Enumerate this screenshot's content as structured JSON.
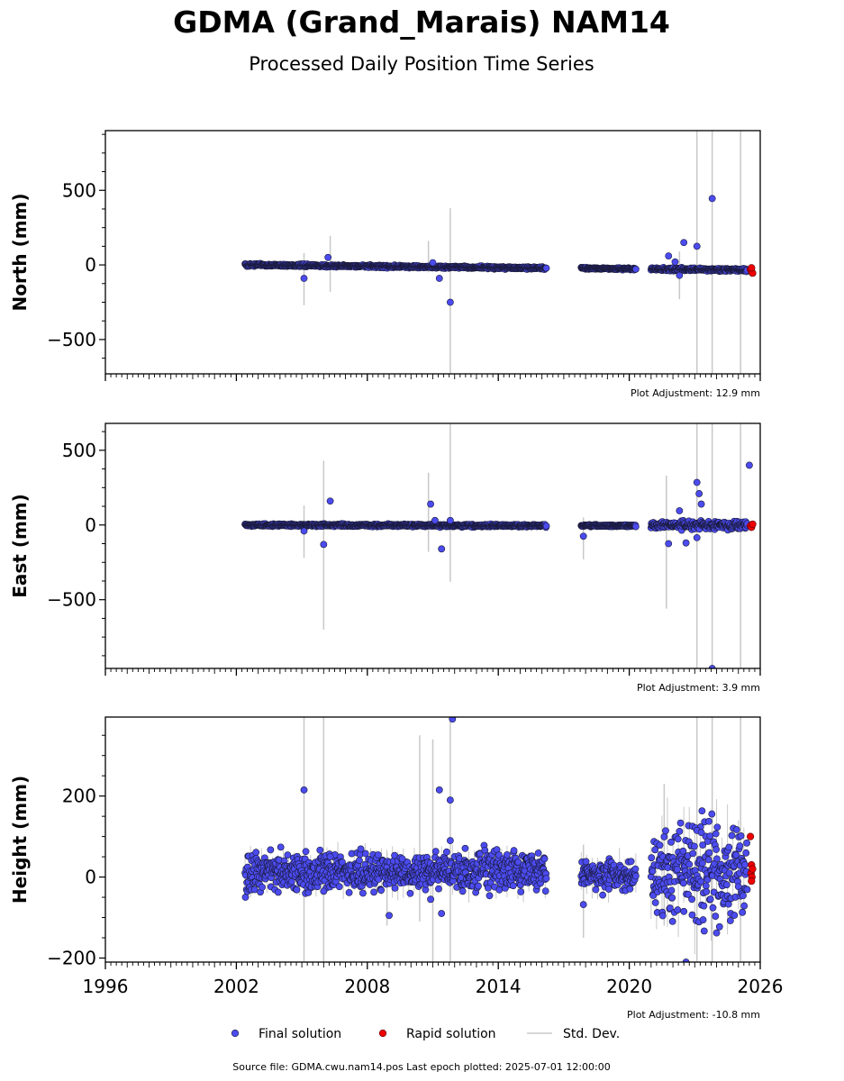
{
  "title": "GDMA (Grand_Marais) NAM14",
  "subtitle": "Processed Daily Position Time Series",
  "footer": "Source file: GDMA.cwu.nam14.pos  Last epoch plotted: 2025-07-01 12:00:00",
  "colors": {
    "final": "#4b4bef",
    "rapid": "#ee0000",
    "stddev": "#c8c8c8",
    "edge": "#1a1a3a"
  },
  "legend": [
    {
      "label": "Final solution",
      "kind": "final"
    },
    {
      "label": "Rapid solution",
      "kind": "rapid"
    },
    {
      "label": "Std. Dev.",
      "kind": "stddev"
    }
  ],
  "chart_data": [
    {
      "type": "scatter",
      "ylabel": "North (mm)",
      "xlim": [
        1996,
        2026
      ],
      "ylim": [
        -730,
        900
      ],
      "yticks": [
        -500,
        0,
        500
      ],
      "ytick_labels": [
        "−500",
        "0",
        "500"
      ],
      "xticks": [
        1996,
        2002,
        2008,
        2014,
        2020,
        2026
      ],
      "xtick_labels": [
        "",
        "",
        "",
        "",
        "",
        ""
      ],
      "adjustment": "Plot Adjustment: 12.9 mm",
      "series": [
        {
          "name": "Final solution",
          "kind": "final",
          "bands": [
            {
              "x": [
                2002.4,
                2016.2
              ],
              "y0": 0,
              "y1": -22,
              "spread": 4
            },
            {
              "x": [
                2017.8,
                2020.3
              ],
              "y0": -22,
              "y1": -27,
              "spread": 3
            },
            {
              "x": [
                2021.0,
                2025.4
              ],
              "y0": -28,
              "y1": -34,
              "spread": 5
            }
          ],
          "outliers": [
            [
              2005.1,
              -90
            ],
            [
              2006.2,
              50
            ],
            [
              2011.0,
              15
            ],
            [
              2011.3,
              -90
            ],
            [
              2011.8,
              -250
            ],
            [
              2021.8,
              60
            ],
            [
              2022.1,
              20
            ],
            [
              2022.5,
              150
            ],
            [
              2023.1,
              125
            ],
            [
              2023.8,
              445
            ],
            [
              2022.3,
              -70
            ]
          ]
        },
        {
          "name": "Rapid solution",
          "kind": "rapid",
          "points": [
            [
              2025.55,
              -30
            ],
            [
              2025.6,
              -45
            ],
            [
              2025.65,
              -55
            ],
            [
              2025.6,
              -20
            ]
          ]
        },
        {
          "name": "Std. Dev.",
          "kind": "stddev",
          "bars": [
            [
              2005.1,
              -270,
              80
            ],
            [
              2006.3,
              -180,
              195
            ],
            [
              2010.8,
              -50,
              160
            ],
            [
              2011.8,
              -730,
              380
            ],
            [
              2022.3,
              -230,
              90
            ],
            [
              2023.1,
              -730,
              900
            ],
            [
              2023.8,
              -730,
              900
            ],
            [
              2025.1,
              -730,
              900
            ]
          ]
        }
      ]
    },
    {
      "type": "scatter",
      "ylabel": "East (mm)",
      "xlim": [
        1996,
        2026
      ],
      "ylim": [
        -960,
        680
      ],
      "yticks": [
        -500,
        0,
        500
      ],
      "ytick_labels": [
        "−500",
        "0",
        "500"
      ],
      "xticks": [
        1996,
        2002,
        2008,
        2014,
        2020,
        2026
      ],
      "xtick_labels": [
        "",
        "",
        "",
        "",
        "",
        ""
      ],
      "adjustment": "Plot Adjustment: 3.9 mm",
      "series": [
        {
          "name": "Final solution",
          "kind": "final",
          "bands": [
            {
              "x": [
                2002.4,
                2016.2
              ],
              "y0": 0,
              "y1": -5,
              "spread": 4
            },
            {
              "x": [
                2017.8,
                2020.3
              ],
              "y0": -5,
              "y1": -5,
              "spread": 3
            },
            {
              "x": [
                2021.0,
                2025.4
              ],
              "y0": 0,
              "y1": 0,
              "spread": 12
            }
          ],
          "outliers": [
            [
              2005.1,
              -40
            ],
            [
              2006.0,
              -130
            ],
            [
              2006.3,
              160
            ],
            [
              2010.9,
              140
            ],
            [
              2011.1,
              30
            ],
            [
              2011.4,
              -160
            ],
            [
              2011.8,
              30
            ],
            [
              2017.9,
              -75
            ],
            [
              2021.8,
              -125
            ],
            [
              2022.3,
              95
            ],
            [
              2022.6,
              -120
            ],
            [
              2023.1,
              285
            ],
            [
              2023.2,
              210
            ],
            [
              2023.3,
              140
            ],
            [
              2023.1,
              -85
            ],
            [
              2025.5,
              400
            ],
            [
              2023.8,
              -960
            ]
          ]
        },
        {
          "name": "Rapid solution",
          "kind": "rapid",
          "points": [
            [
              2025.55,
              -5
            ],
            [
              2025.6,
              -15
            ],
            [
              2025.65,
              5
            ]
          ]
        },
        {
          "name": "Std. Dev.",
          "kind": "stddev",
          "bars": [
            [
              2005.1,
              -220,
              130
            ],
            [
              2006.0,
              -700,
              430
            ],
            [
              2010.8,
              -180,
              350
            ],
            [
              2011.8,
              -380,
              680
            ],
            [
              2017.9,
              -230,
              50
            ],
            [
              2021.7,
              -560,
              330
            ],
            [
              2023.1,
              -960,
              680
            ],
            [
              2023.8,
              -960,
              680
            ],
            [
              2025.1,
              -960,
              680
            ]
          ]
        }
      ]
    },
    {
      "type": "scatter",
      "ylabel": "Height (mm)",
      "xlim": [
        1996,
        2026
      ],
      "ylim": [
        -210,
        395
      ],
      "yticks": [
        -200,
        0,
        200
      ],
      "ytick_labels": [
        "−200",
        "0",
        "200"
      ],
      "xticks": [
        1996,
        2002,
        2008,
        2014,
        2020,
        2026
      ],
      "xtick_labels": [
        "1996",
        "2002",
        "2008",
        "2014",
        "2020",
        "2026"
      ],
      "adjustment": "Plot Adjustment: -10.8 mm",
      "series": [
        {
          "name": "Final solution",
          "kind": "final",
          "bands": [
            {
              "x": [
                2002.4,
                2016.2
              ],
              "y0": 10,
              "y1": 15,
              "spread": 22
            },
            {
              "x": [
                2017.8,
                2020.3
              ],
              "y0": 8,
              "y1": 5,
              "spread": 18
            },
            {
              "x": [
                2021.0,
                2025.4
              ],
              "y0": 10,
              "y1": 20,
              "spread": 55
            }
          ],
          "outliers": [
            [
              2005.1,
              215
            ],
            [
              2006.0,
              -35
            ],
            [
              2006.3,
              50
            ],
            [
              2009.0,
              -95
            ],
            [
              2009.6,
              45
            ],
            [
              2010.9,
              -55
            ],
            [
              2011.3,
              215
            ],
            [
              2011.4,
              -90
            ],
            [
              2011.8,
              190
            ],
            [
              2011.8,
              90
            ],
            [
              2011.9,
              390
            ],
            [
              2014.4,
              55
            ],
            [
              2017.9,
              -68
            ],
            [
              2022.6,
              -210
            ],
            [
              2022.5,
              -85
            ],
            [
              2023.1,
              115
            ],
            [
              2023.3,
              110
            ]
          ]
        },
        {
          "name": "Rapid solution",
          "kind": "rapid",
          "points": [
            [
              2025.55,
              100
            ],
            [
              2025.6,
              30
            ],
            [
              2025.58,
              10
            ],
            [
              2025.62,
              0
            ],
            [
              2025.6,
              -10
            ],
            [
              2025.65,
              20
            ]
          ]
        },
        {
          "name": "Std. Dev.",
          "kind": "stddev",
          "bars": [
            [
              2005.1,
              -210,
              395
            ],
            [
              2006.0,
              -210,
              395
            ],
            [
              2008.9,
              -120,
              60
            ],
            [
              2010.4,
              -110,
              350
            ],
            [
              2011.0,
              -210,
              340
            ],
            [
              2011.8,
              -210,
              395
            ],
            [
              2017.9,
              -150,
              80
            ],
            [
              2021.6,
              -120,
              230
            ],
            [
              2023.1,
              -210,
              395
            ],
            [
              2023.8,
              -210,
              395
            ],
            [
              2025.1,
              -210,
              395
            ]
          ]
        }
      ]
    }
  ]
}
